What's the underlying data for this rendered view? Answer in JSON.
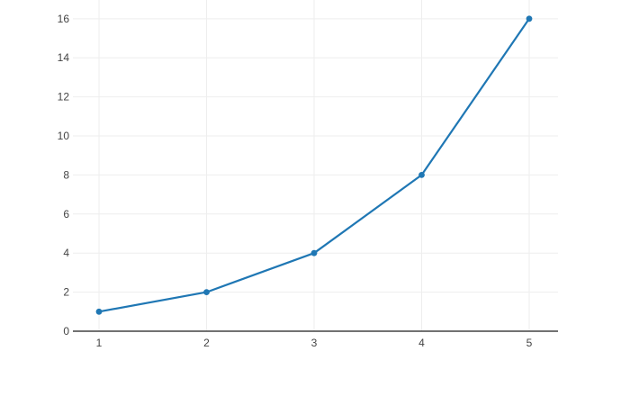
{
  "chart_data": {
    "type": "line",
    "title": "",
    "xlabel": "",
    "ylabel": "",
    "series": [
      {
        "name": "trace-0",
        "mode": "lines+markers",
        "x": [
          1,
          2,
          3,
          4,
          5
        ],
        "y": [
          1,
          2,
          4,
          8,
          16
        ],
        "color": "#1f77b4"
      }
    ],
    "x_tick_values": [
      1,
      2,
      3,
      4,
      5
    ],
    "x_tick_labels": [
      "1",
      "2",
      "3",
      "4",
      "5"
    ],
    "y_tick_values": [
      0,
      2,
      4,
      6,
      8,
      10,
      12,
      14,
      16
    ],
    "y_tick_labels": [
      "0",
      "2",
      "4",
      "6",
      "8",
      "10",
      "12",
      "14",
      "16"
    ],
    "xlim": [
      0.757,
      5.268
    ],
    "ylim": [
      0,
      16.96
    ],
    "grid": true,
    "legend_position": "none",
    "colors": {
      "line": "#1f77b4",
      "marker": "#1f77b4",
      "gridline": "#eeeeee",
      "zeroline": "#444444",
      "tick_label": "#444444",
      "background": "#ffffff"
    }
  }
}
